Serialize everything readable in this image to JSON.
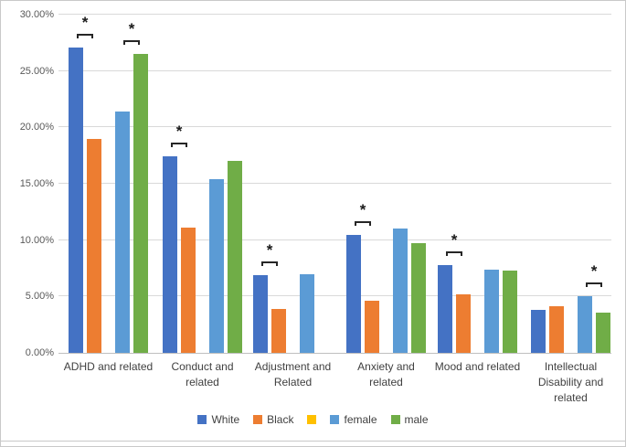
{
  "chart_data": {
    "type": "bar",
    "title": "",
    "xlabel": "",
    "ylabel": "",
    "ylim": [
      0,
      30
    ],
    "grid": true,
    "legend_position": "bottom",
    "y_ticks": [
      "0.00%",
      "5.00%",
      "10.00%",
      "15.00%",
      "20.00%",
      "25.00%",
      "30.00%"
    ],
    "y_tick_values": [
      0,
      5,
      10,
      15,
      20,
      25,
      30
    ],
    "categories": [
      "ADHD and related",
      "Conduct and\nrelated",
      "Adjustment and\nRelated",
      "Anxiety and\nrelated",
      "Mood and related",
      "Intellectual\nDisability and\nrelated"
    ],
    "series": [
      {
        "name": "White",
        "color": "#4472C4",
        "values": [
          27.1,
          17.4,
          6.9,
          10.5,
          7.8,
          3.8
        ]
      },
      {
        "name": "Black",
        "color": "#ED7D31",
        "values": [
          19.0,
          11.1,
          3.9,
          4.6,
          5.2,
          4.1
        ]
      },
      {
        "name": "female",
        "color": "#5B9BD5",
        "values": [
          21.4,
          15.4,
          7.0,
          11.0,
          7.4,
          5.0
        ]
      },
      {
        "name": "male",
        "color": "#70AD47",
        "values": [
          26.5,
          17.0,
          null,
          9.7,
          7.3,
          3.6
        ]
      }
    ],
    "legend": [
      {
        "label": "White",
        "color": "#4472C4"
      },
      {
        "label": "Black",
        "color": "#ED7D31"
      },
      {
        "label": "",
        "color": "#FFC000"
      },
      {
        "label": "female",
        "color": "#5B9BD5"
      },
      {
        "label": "male",
        "color": "#70AD47"
      }
    ],
    "significance": [
      {
        "category_index": 0,
        "pair": "White-Black",
        "symbol": "*"
      },
      {
        "category_index": 0,
        "pair": "female-male",
        "symbol": "*"
      },
      {
        "category_index": 1,
        "pair": "White-Black",
        "symbol": "*"
      },
      {
        "category_index": 2,
        "pair": "White-Black",
        "symbol": "*"
      },
      {
        "category_index": 3,
        "pair": "White-Black",
        "symbol": "*"
      },
      {
        "category_index": 4,
        "pair": "White-Black",
        "symbol": "*"
      },
      {
        "category_index": 5,
        "pair": "female-male",
        "symbol": "*"
      }
    ]
  }
}
